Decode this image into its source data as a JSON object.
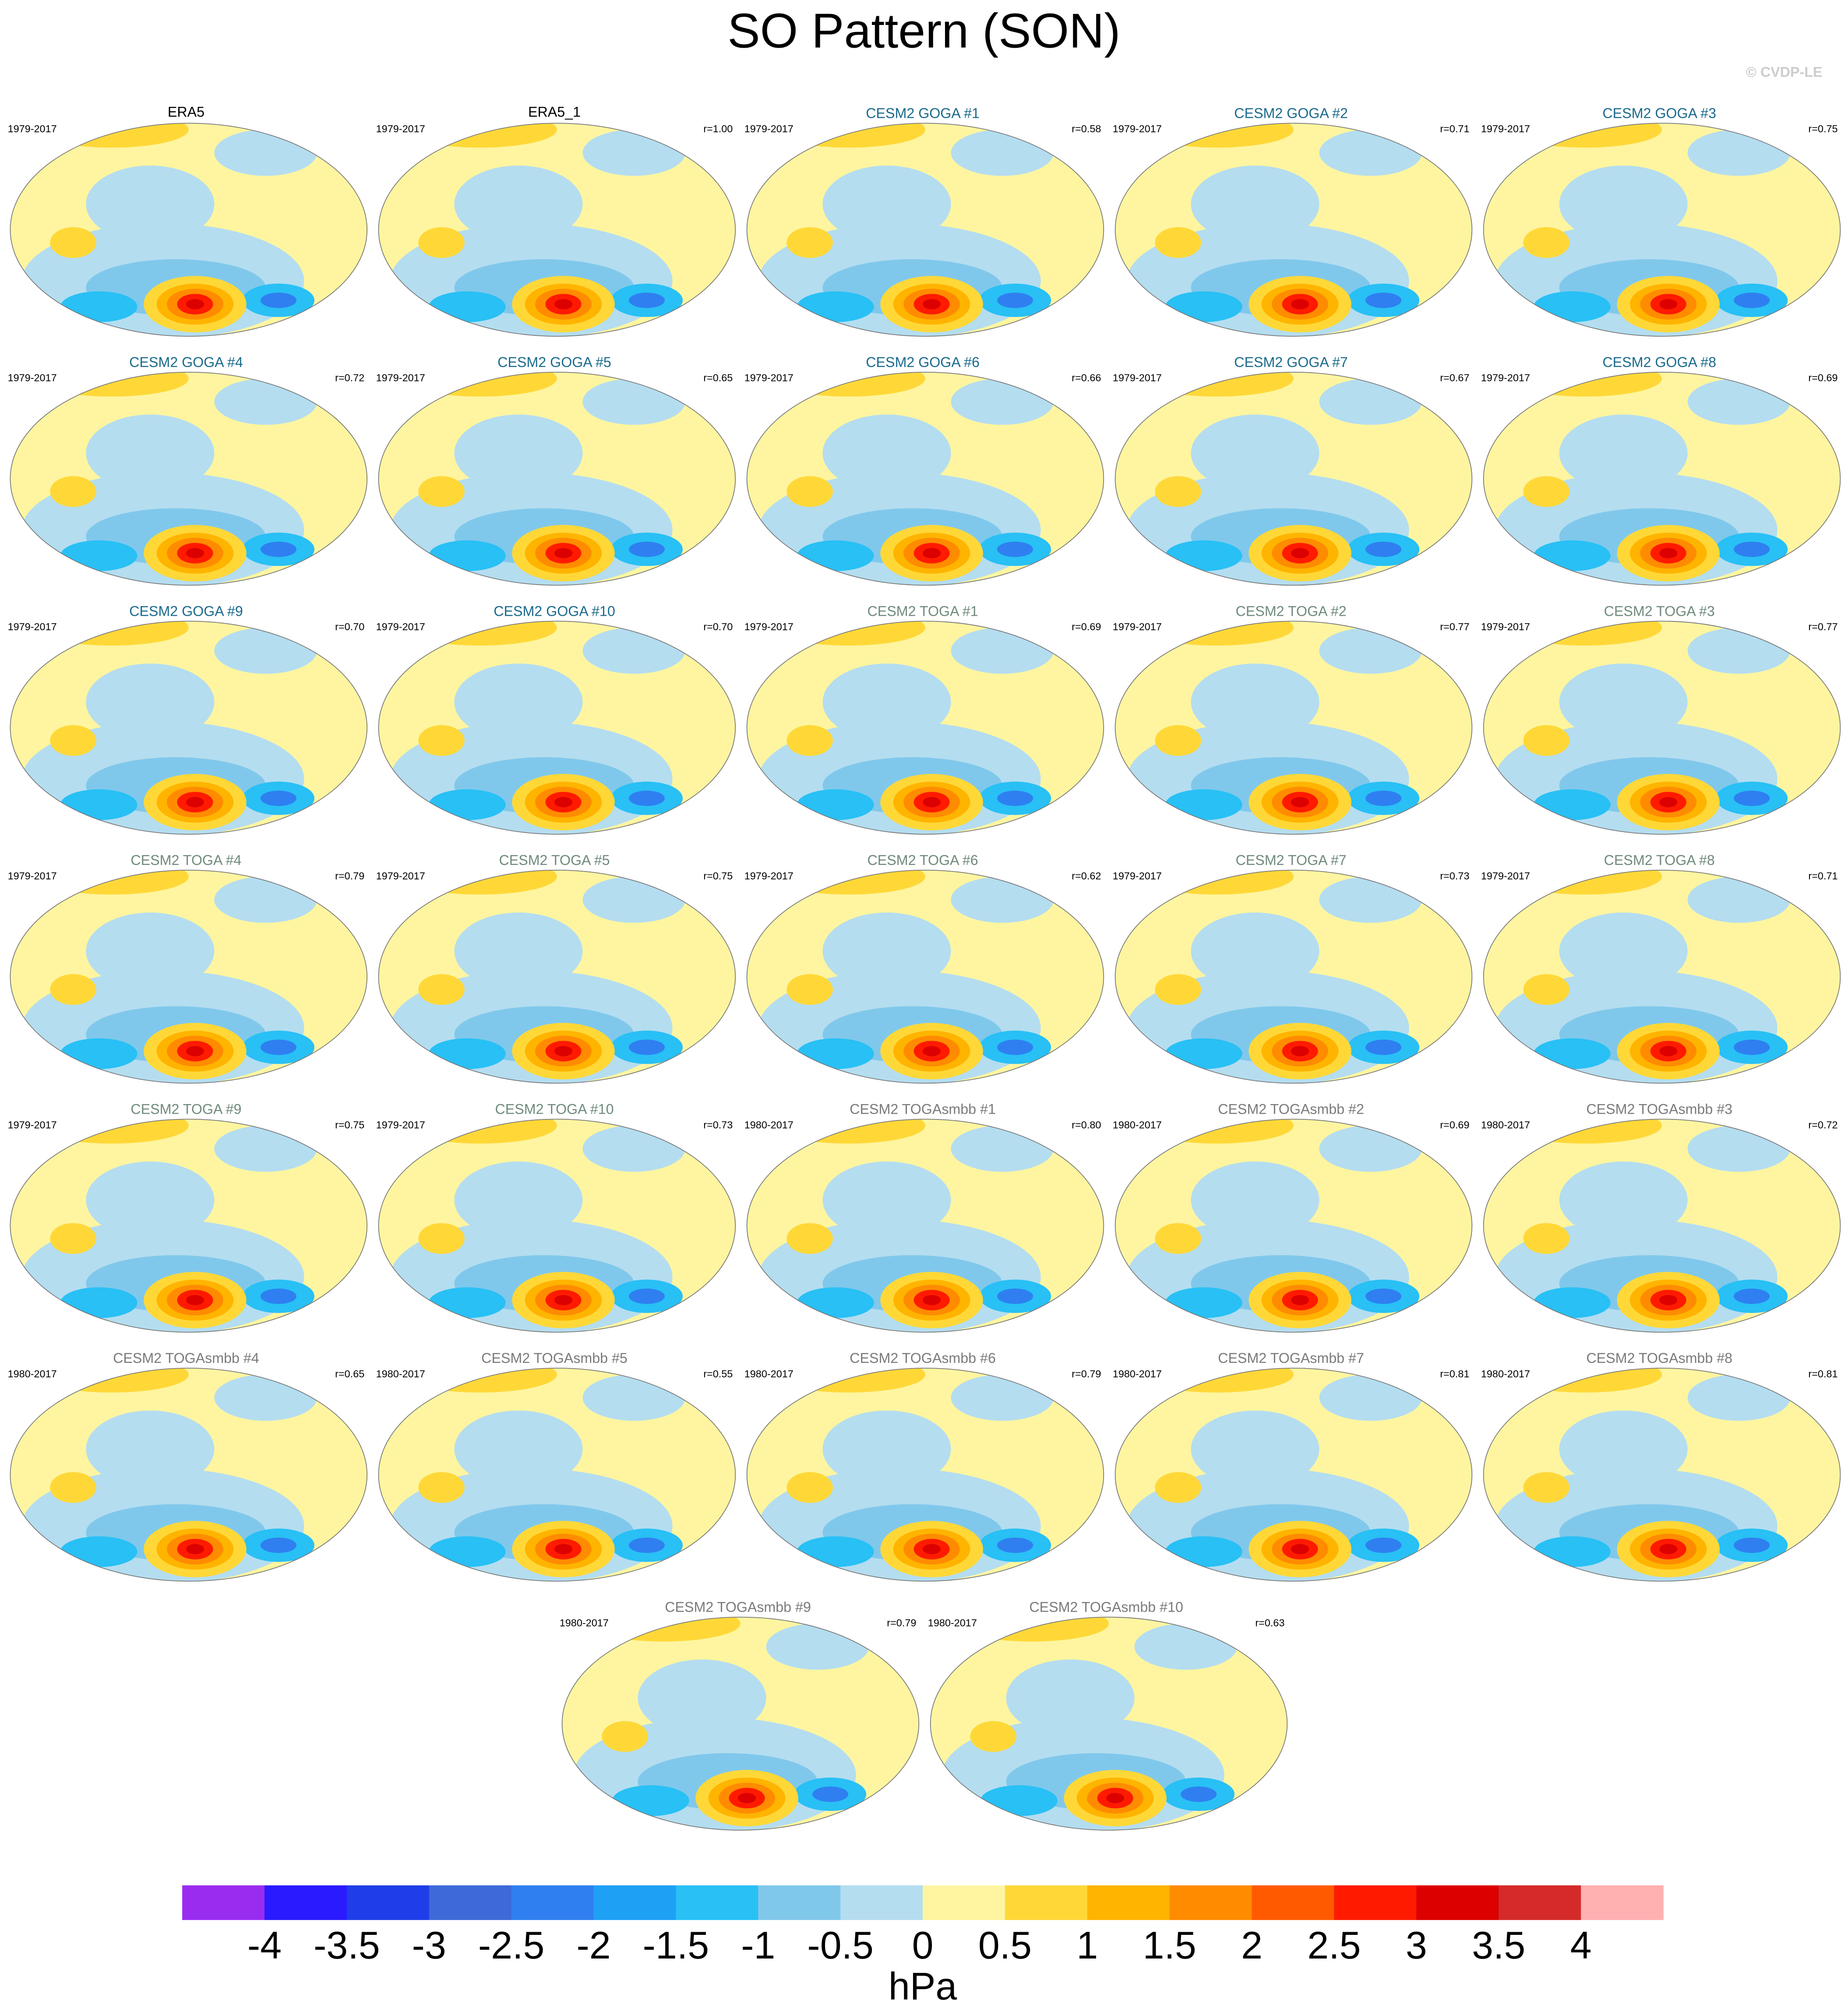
{
  "title": "SO Pattern (SON)",
  "credit": "© CVDP-LE",
  "panels": [
    {
      "title": "ERA5",
      "period": "1979-2017",
      "color": "#000000"
    },
    {
      "title": "ERA5_1",
      "period": "1979-2017",
      "r": "r=1.00",
      "color": "#000000"
    },
    {
      "title": "CESM2 GOGA #1",
      "period": "1979-2017",
      "r": "r=0.58",
      "color": "#1a6a8c"
    },
    {
      "title": "CESM2 GOGA #2",
      "period": "1979-2017",
      "r": "r=0.71",
      "color": "#1a6a8c"
    },
    {
      "title": "CESM2 GOGA #3",
      "period": "1979-2017",
      "r": "r=0.75",
      "color": "#1a6a8c"
    },
    {
      "title": "CESM2 GOGA #4",
      "period": "1979-2017",
      "r": "r=0.72",
      "color": "#1a6a8c"
    },
    {
      "title": "CESM2 GOGA #5",
      "period": "1979-2017",
      "r": "r=0.65",
      "color": "#1a6a8c"
    },
    {
      "title": "CESM2 GOGA #6",
      "period": "1979-2017",
      "r": "r=0.66",
      "color": "#1a6a8c"
    },
    {
      "title": "CESM2 GOGA #7",
      "period": "1979-2017",
      "r": "r=0.67",
      "color": "#1a6a8c"
    },
    {
      "title": "CESM2 GOGA #8",
      "period": "1979-2017",
      "r": "r=0.69",
      "color": "#1a6a8c"
    },
    {
      "title": "CESM2 GOGA #9",
      "period": "1979-2017",
      "r": "r=0.70",
      "color": "#1a6a8c"
    },
    {
      "title": "CESM2 GOGA #10",
      "period": "1979-2017",
      "r": "r=0.70",
      "color": "#1a6a8c"
    },
    {
      "title": "CESM2 TOGA #1",
      "period": "1979-2017",
      "r": "r=0.69",
      "color": "#6f8a7c"
    },
    {
      "title": "CESM2 TOGA #2",
      "period": "1979-2017",
      "r": "r=0.77",
      "color": "#6f8a7c"
    },
    {
      "title": "CESM2 TOGA #3",
      "period": "1979-2017",
      "r": "r=0.77",
      "color": "#6f8a7c"
    },
    {
      "title": "CESM2 TOGA #4",
      "period": "1979-2017",
      "r": "r=0.79",
      "color": "#6f8a7c"
    },
    {
      "title": "CESM2 TOGA #5",
      "period": "1979-2017",
      "r": "r=0.75",
      "color": "#6f8a7c"
    },
    {
      "title": "CESM2 TOGA #6",
      "period": "1979-2017",
      "r": "r=0.62",
      "color": "#6f8a7c"
    },
    {
      "title": "CESM2 TOGA #7",
      "period": "1979-2017",
      "r": "r=0.73",
      "color": "#6f8a7c"
    },
    {
      "title": "CESM2 TOGA #8",
      "period": "1979-2017",
      "r": "r=0.71",
      "color": "#6f8a7c"
    },
    {
      "title": "CESM2 TOGA #9",
      "period": "1979-2017",
      "r": "r=0.75",
      "color": "#6f8a7c"
    },
    {
      "title": "CESM2 TOGA #10",
      "period": "1979-2017",
      "r": "r=0.73",
      "color": "#6f8a7c"
    },
    {
      "title": "CESM2 TOGAsmbb #1",
      "period": "1980-2017",
      "r": "r=0.80",
      "color": "#7a7a7a"
    },
    {
      "title": "CESM2 TOGAsmbb #2",
      "period": "1980-2017",
      "r": "r=0.69",
      "color": "#7a7a7a"
    },
    {
      "title": "CESM2 TOGAsmbb #3",
      "period": "1980-2017",
      "r": "r=0.72",
      "color": "#7a7a7a"
    },
    {
      "title": "CESM2 TOGAsmbb #4",
      "period": "1980-2017",
      "r": "r=0.65",
      "color": "#7a7a7a"
    },
    {
      "title": "CESM2 TOGAsmbb #5",
      "period": "1980-2017",
      "r": "r=0.55",
      "color": "#7a7a7a"
    },
    {
      "title": "CESM2 TOGAsmbb #6",
      "period": "1980-2017",
      "r": "r=0.79",
      "color": "#7a7a7a"
    },
    {
      "title": "CESM2 TOGAsmbb #7",
      "period": "1980-2017",
      "r": "r=0.81",
      "color": "#7a7a7a"
    },
    {
      "title": "CESM2 TOGAsmbb #8",
      "period": "1980-2017",
      "r": "r=0.81",
      "color": "#7a7a7a"
    },
    {
      "title": "CESM2 TOGAsmbb #9",
      "period": "1980-2017",
      "r": "r=0.79",
      "color": "#7a7a7a"
    },
    {
      "title": "CESM2 TOGAsmbb #10",
      "period": "1980-2017",
      "r": "r=0.63",
      "color": "#7a7a7a"
    }
  ],
  "colorbar": {
    "colors": [
      "#9a2cf0",
      "#2a1aff",
      "#1f3de8",
      "#3c6ad8",
      "#2f7ff0",
      "#1ea0f5",
      "#28c0f5",
      "#80c8eb",
      "#b4ddf0",
      "#fff5a0",
      "#ffd838",
      "#ffb400",
      "#ff8c00",
      "#ff5a00",
      "#ff1a00",
      "#dc0000",
      "#d42a2a",
      "#ffb0b0"
    ],
    "ticks": [
      -4,
      -3.5,
      -3,
      -2.5,
      -2,
      -1.5,
      -1,
      -0.5,
      0,
      0.5,
      1,
      1.5,
      2,
      2.5,
      3,
      3.5,
      4
    ],
    "label": "hPa"
  }
}
